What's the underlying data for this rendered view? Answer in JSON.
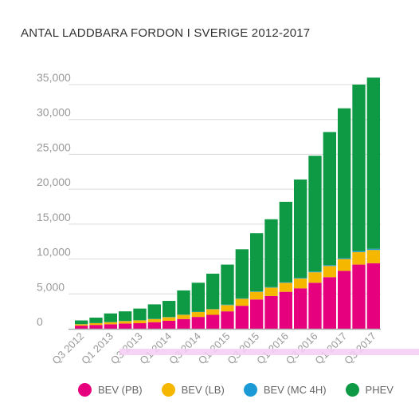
{
  "chart_data": {
    "type": "bar",
    "stacked": true,
    "title": "ANTAL LADDBARA FORDON I SVERIGE 2012-2017",
    "xlabel": "",
    "ylabel": "",
    "ylim": [
      0,
      35000
    ],
    "yticks": [
      0,
      5000,
      10000,
      15000,
      20000,
      25000,
      30000,
      35000
    ],
    "ytick_labels": [
      "0",
      "5,000",
      "10,000",
      "15,000",
      "20,000",
      "25,000",
      "30,000",
      "35,000"
    ],
    "grid": true,
    "legend_position": "bottom",
    "categories": [
      "Q3 2012",
      "Q4 2012",
      "Q1 2013",
      "Q2 2013",
      "Q3 2013",
      "Q4 2013",
      "Q1 2014",
      "Q2 2014",
      "Q3 2014",
      "Q4 2014",
      "Q1 2015",
      "Q2 2015",
      "Q3 2015",
      "Q4 2015",
      "Q1 2016",
      "Q2 2016",
      "Q3 2016",
      "Q4 2016",
      "Q1 2017",
      "Q2 2017",
      "Q3 2017"
    ],
    "xtick_labels": [
      "Q3 2012",
      "",
      "Q1 2013",
      "",
      "Q3 2013",
      "",
      "Q1 2014",
      "",
      "Q3 2014",
      "",
      "Q1 2015",
      "",
      "Q3 2015",
      "",
      "Q1 2016",
      "",
      "Q3 2016",
      "",
      "Q1 2017",
      "",
      "Q3 2017"
    ],
    "series": [
      {
        "name": "BEV (PB)",
        "color": "#e6007e",
        "values": [
          450,
          550,
          650,
          750,
          800,
          950,
          1150,
          1400,
          1700,
          2000,
          2500,
          3300,
          4200,
          4700,
          5300,
          5800,
          6600,
          7400,
          8300,
          9200,
          9400
        ]
      },
      {
        "name": "BEV (LB)",
        "color": "#f5b700",
        "values": [
          200,
          250,
          300,
          350,
          400,
          450,
          500,
          600,
          700,
          800,
          900,
          1000,
          1100,
          1200,
          1300,
          1400,
          1500,
          1600,
          1700,
          1800,
          1900
        ]
      },
      {
        "name": "BEV (MC 4H)",
        "color": "#1c9ad6",
        "values": [
          20,
          20,
          20,
          30,
          30,
          30,
          40,
          40,
          50,
          50,
          60,
          60,
          70,
          80,
          90,
          100,
          110,
          120,
          130,
          150,
          170
        ]
      },
      {
        "name": "PHEV",
        "color": "#0e9a44",
        "values": [
          530,
          780,
          1230,
          1370,
          1670,
          2070,
          2310,
          3460,
          4150,
          5050,
          5740,
          7040,
          8330,
          9720,
          11510,
          14100,
          16590,
          19080,
          21470,
          23850,
          24530
        ]
      }
    ]
  }
}
